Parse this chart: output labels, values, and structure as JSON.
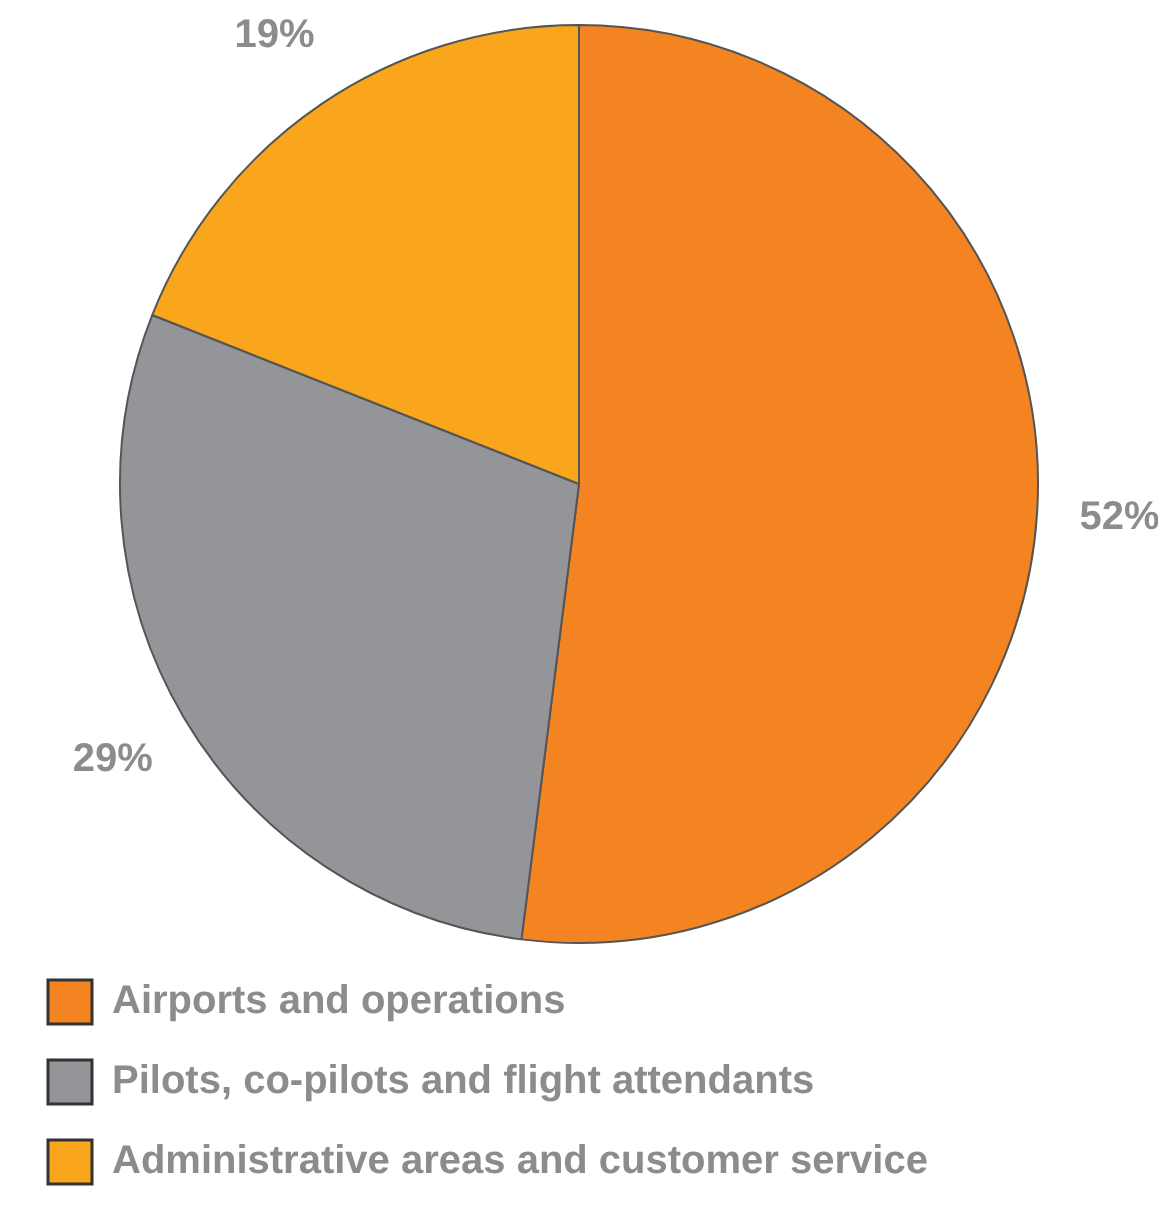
{
  "chart_data": {
    "type": "pie",
    "categories": [
      "Airports and operations",
      "Pilots, co-pilots and flight attendants",
      "Administrative areas and customer service"
    ],
    "values": [
      52,
      29,
      19
    ],
    "colors": [
      "#f38421",
      "#939598",
      "#f9a61c"
    ],
    "value_labels": [
      "52%",
      "29%",
      "19%"
    ],
    "legend": "bottom"
  }
}
